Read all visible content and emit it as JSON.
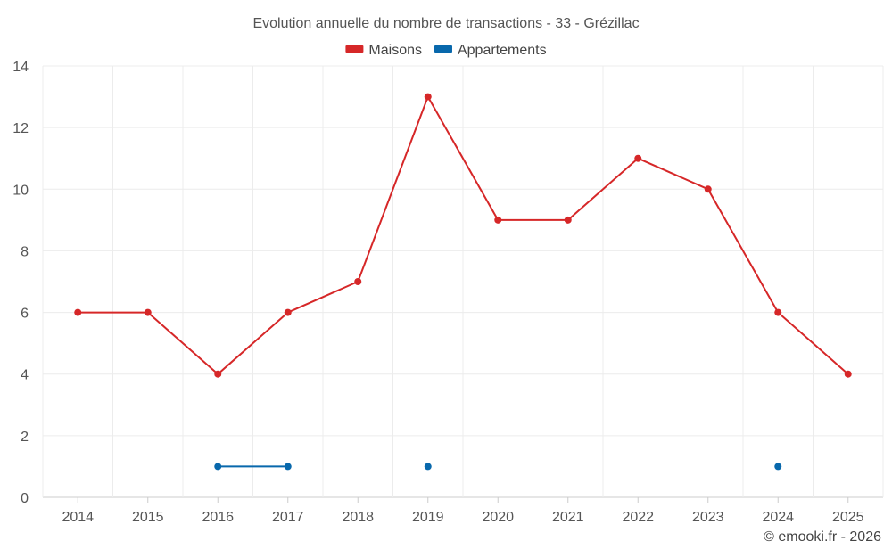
{
  "chart_data": {
    "type": "line",
    "title": "Evolution annuelle du nombre de transactions - 33 - Grézillac",
    "categories": [
      "2014",
      "2015",
      "2016",
      "2017",
      "2018",
      "2019",
      "2020",
      "2021",
      "2022",
      "2023",
      "2024",
      "2025"
    ],
    "series": [
      {
        "name": "Maisons",
        "color": "#d62728",
        "values": [
          6,
          6,
          4,
          6,
          7,
          13,
          9,
          9,
          11,
          10,
          6,
          4
        ]
      },
      {
        "name": "Appartements",
        "color": "#0868ac",
        "values": [
          null,
          null,
          1,
          1,
          null,
          1,
          null,
          null,
          null,
          null,
          1,
          null
        ]
      }
    ],
    "ylim": [
      0,
      14
    ],
    "yticks": [
      0,
      2,
      4,
      6,
      8,
      10,
      12,
      14
    ],
    "legend_position": "top-center",
    "grid": true
  },
  "footer": {
    "credit": "© emooki.fr - 2026"
  }
}
